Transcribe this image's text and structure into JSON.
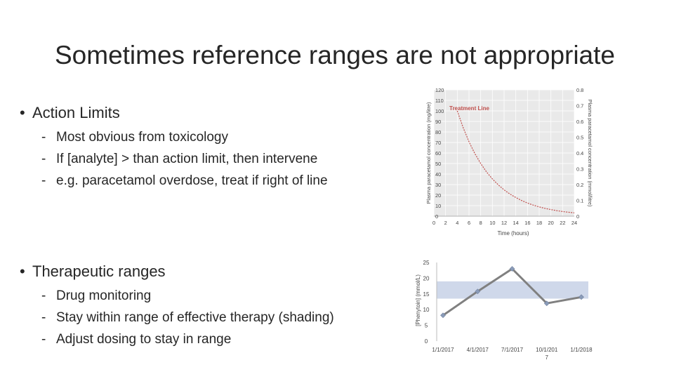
{
  "title": "Sometimes reference ranges are not appropriate",
  "bullets": [
    {
      "label": "Action Limits",
      "items": [
        "Most obvious from toxicology",
        "If [analyte] > than action limit, then intervene",
        "e.g. paracetamol overdose, treat if right of line"
      ]
    },
    {
      "label": "Therapeutic ranges",
      "items": [
        "Drug monitoring",
        "Stay within range of effective therapy (shading)",
        "Adjust dosing to stay in range"
      ]
    }
  ],
  "bullet_symbol": "•",
  "dash_symbol": "-",
  "chart_data": [
    {
      "type": "line",
      "title": "",
      "series_label": "Treatment Line",
      "xlabel": "Time (hours)",
      "ylabel": "Plasma paracetamol concentration (mg/litre)",
      "y2label": "Plasma paracetamol concentration (mmol/litre)",
      "x_ticks": [
        "0",
        "2",
        "4",
        "6",
        "8",
        "10",
        "12",
        "14",
        "16",
        "18",
        "20",
        "22",
        "24"
      ],
      "y_ticks": [
        "0",
        "10",
        "20",
        "30",
        "40",
        "50",
        "60",
        "70",
        "80",
        "90",
        "100",
        "110",
        "120"
      ],
      "y2_ticks": [
        "0",
        "0.1",
        "0.2",
        "0.3",
        "0.4",
        "0.5",
        "0.6",
        "0.7",
        "0.8"
      ],
      "xlim": [
        0,
        24
      ],
      "ylim": [
        0,
        120
      ],
      "y2lim": [
        0,
        0.8
      ],
      "grid": true,
      "line_style": "dashed",
      "line_color": "#c0504d",
      "x": [
        4,
        5,
        6,
        7,
        8,
        9,
        10,
        11,
        12,
        13,
        14,
        15,
        16,
        17,
        18,
        19,
        20,
        21,
        22,
        23,
        24
      ],
      "y": [
        100,
        84.1,
        70.7,
        59.5,
        50,
        42,
        35.4,
        29.7,
        25,
        21,
        17.7,
        14.9,
        12.5,
        10.5,
        8.8,
        7.4,
        6.3,
        5.3,
        4.4,
        3.7,
        3.1
      ]
    },
    {
      "type": "line",
      "title": "",
      "xlabel": "",
      "ylabel": "[Phenytoin] (mmol/L)",
      "categories": [
        "1/1/2017",
        "4/1/2017",
        "7/1/2017",
        "10/1/2017",
        "1/1/2018"
      ],
      "category_label_lines": [
        [
          "1/1/2017"
        ],
        [
          "4/1/2017"
        ],
        [
          "7/1/2017"
        ],
        [
          "10/1/201",
          "7"
        ],
        [
          "1/1/2018"
        ]
      ],
      "y_ticks": [
        "0",
        "5",
        "10",
        "15",
        "20",
        "25"
      ],
      "ylim": [
        0,
        25
      ],
      "grid": false,
      "therapeutic_range": [
        13.5,
        19
      ],
      "band_color": "#cfd8ea",
      "line_color": "#808080",
      "marker_color": "#8a9bb8",
      "series": [
        {
          "values": [
            8.2,
            15.8,
            23,
            12,
            14
          ]
        }
      ]
    }
  ]
}
